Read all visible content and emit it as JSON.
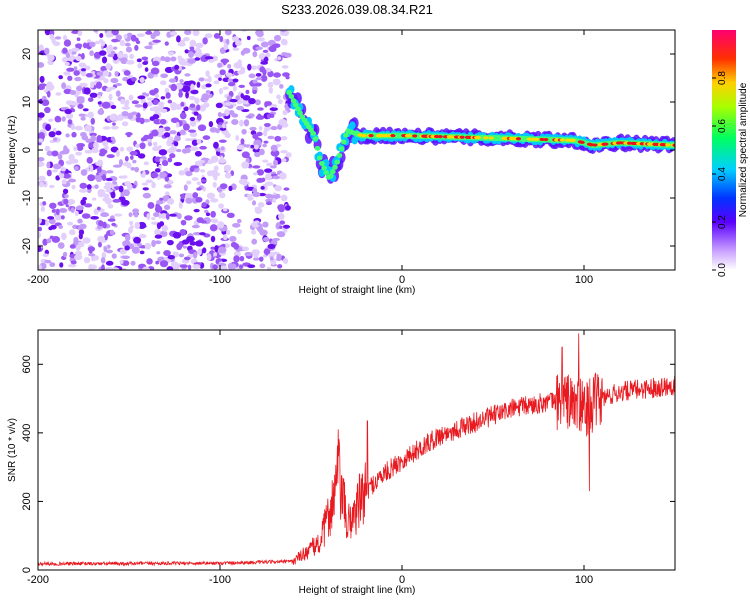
{
  "title": "S233.2026.039.08.34.R21",
  "colors": {
    "snr_line": "#e8191f",
    "axes": "#000000",
    "noise": "#7a1ef0"
  },
  "chart_data": [
    {
      "type": "heatmap",
      "id": "spectrogram",
      "xlabel": "Height of straight line (km)",
      "ylabel": "Frequency (Hz)",
      "xlim": [
        -200,
        150
      ],
      "ylim": [
        -25,
        25
      ],
      "xticks": [
        -200,
        -100,
        0,
        100
      ],
      "xtick_labels": [
        "-200",
        "-100",
        "0",
        "100"
      ],
      "yticks": [
        -20,
        -10,
        0,
        10,
        20
      ],
      "ytick_labels": [
        "-20",
        "-10",
        "0",
        "10",
        "20"
      ],
      "colorbar": {
        "label": "Normalized spectral amplitude",
        "range": [
          0,
          1
        ],
        "ticks": [
          0,
          0.2,
          0.4,
          0.6,
          0.8
        ],
        "tick_labels": [
          "0.0",
          "0.2",
          "0.4",
          "0.6",
          "0.8"
        ]
      },
      "noise_region_x": [
        -200,
        -62
      ],
      "ridge": [
        {
          "x": -62,
          "y": 12
        },
        {
          "x": -55,
          "y": 7
        },
        {
          "x": -48,
          "y": 3
        },
        {
          "x": -45,
          "y": -2
        },
        {
          "x": -40,
          "y": -6
        },
        {
          "x": -36,
          "y": -3
        },
        {
          "x": -30,
          "y": 4
        },
        {
          "x": -22,
          "y": 3
        },
        {
          "x": 0,
          "y": 3
        },
        {
          "x": 50,
          "y": 2.5
        },
        {
          "x": 95,
          "y": 2
        },
        {
          "x": 105,
          "y": 1
        },
        {
          "x": 120,
          "y": 1.5
        },
        {
          "x": 150,
          "y": 1
        }
      ]
    },
    {
      "type": "line",
      "id": "snr",
      "xlabel": "Height of straight line (km)",
      "ylabel": "SNR (10 * v/v)",
      "xlim": [
        -200,
        150
      ],
      "ylim": [
        0,
        700
      ],
      "xticks": [
        -200,
        -100,
        0,
        100
      ],
      "xtick_labels": [
        "-200",
        "-100",
        "0",
        "100"
      ],
      "yticks": [
        0,
        200,
        400,
        600
      ],
      "ytick_labels": [
        "0",
        "200",
        "400",
        "600"
      ],
      "series": [
        {
          "name": "SNR",
          "trend_x": [
            -200,
            -100,
            -60,
            -45,
            -38,
            -35,
            -30,
            -20,
            -10,
            0,
            20,
            40,
            60,
            80,
            90,
            100,
            110,
            120,
            150
          ],
          "trend_y": [
            18,
            20,
            25,
            80,
            200,
            280,
            130,
            230,
            280,
            320,
            390,
            430,
            470,
            490,
            495,
            470,
            500,
            520,
            540
          ],
          "spikes": [
            {
              "x": -35,
              "y": 410
            },
            {
              "x": -19,
              "y": 435
            },
            {
              "x": 88,
              "y": 650
            },
            {
              "x": 97,
              "y": 690
            },
            {
              "x": 103,
              "y": 230
            }
          ]
        }
      ]
    }
  ]
}
